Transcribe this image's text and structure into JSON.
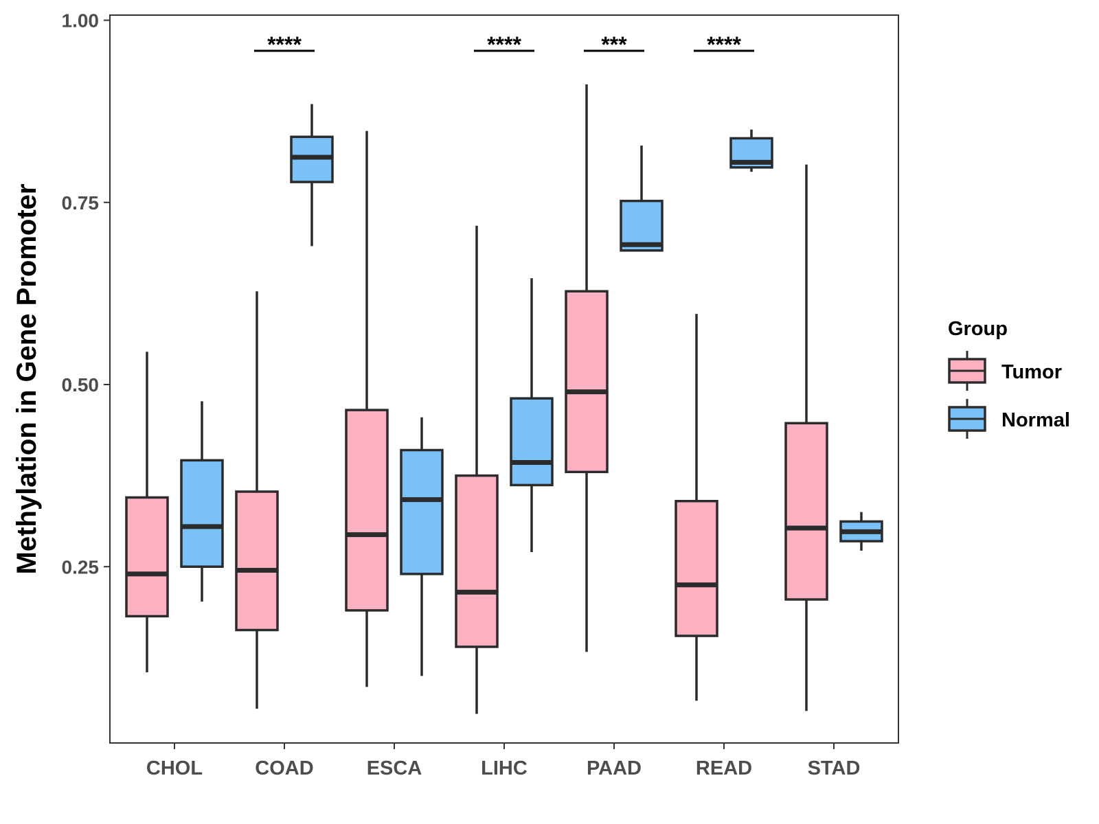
{
  "chart_data": {
    "type": "boxplot",
    "title": "",
    "xlabel": "",
    "ylabel": "Methylation in Gene Promoter",
    "ylim": [
      0.0,
      1.0
    ],
    "yticks": [
      0.25,
      0.5,
      0.75,
      1.0
    ],
    "ytick_labels": [
      "0.25",
      "0.50",
      "0.75",
      "1.00"
    ],
    "categories": [
      "CHOL",
      "COAD",
      "ESCA",
      "LIHC",
      "PAAD",
      "READ",
      "STAD"
    ],
    "grid": false,
    "legend": {
      "title": "Group",
      "position": "right",
      "entries": [
        {
          "name": "Tumor",
          "color": "#FBB1C2"
        },
        {
          "name": "Normal",
          "color": "#7AC1F8"
        }
      ]
    },
    "series": [
      {
        "name": "Tumor",
        "color": "#FBB1C2",
        "boxes": [
          {
            "category": "CHOL",
            "min": 0.105,
            "q1": 0.182,
            "median": 0.24,
            "q3": 0.345,
            "max": 0.545
          },
          {
            "category": "COAD",
            "min": 0.055,
            "q1": 0.163,
            "median": 0.245,
            "q3": 0.353,
            "max": 0.628
          },
          {
            "category": "ESCA",
            "min": 0.085,
            "q1": 0.19,
            "median": 0.294,
            "q3": 0.465,
            "max": 0.848
          },
          {
            "category": "LIHC",
            "min": 0.048,
            "q1": 0.14,
            "median": 0.215,
            "q3": 0.375,
            "max": 0.718
          },
          {
            "category": "PAAD",
            "min": 0.133,
            "q1": 0.38,
            "median": 0.49,
            "q3": 0.628,
            "max": 0.912
          },
          {
            "category": "READ",
            "min": 0.066,
            "q1": 0.155,
            "median": 0.225,
            "q3": 0.34,
            "max": 0.597
          },
          {
            "category": "STAD",
            "min": 0.052,
            "q1": 0.205,
            "median": 0.303,
            "q3": 0.447,
            "max": 0.802
          }
        ]
      },
      {
        "name": "Normal",
        "color": "#7AC1F8",
        "boxes": [
          {
            "category": "CHOL",
            "min": 0.202,
            "q1": 0.25,
            "median": 0.305,
            "q3": 0.396,
            "max": 0.477
          },
          {
            "category": "COAD",
            "min": 0.69,
            "q1": 0.778,
            "median": 0.812,
            "q3": 0.84,
            "max": 0.885
          },
          {
            "category": "ESCA",
            "min": 0.1,
            "q1": 0.24,
            "median": 0.342,
            "q3": 0.41,
            "max": 0.455
          },
          {
            "category": "LIHC",
            "min": 0.27,
            "q1": 0.362,
            "median": 0.393,
            "q3": 0.481,
            "max": 0.646
          },
          {
            "category": "PAAD",
            "min": 0.684,
            "q1": 0.684,
            "median": 0.692,
            "q3": 0.752,
            "max": 0.828
          },
          {
            "category": "READ",
            "min": 0.792,
            "q1": 0.798,
            "median": 0.805,
            "q3": 0.838,
            "max": 0.85
          },
          {
            "category": "STAD",
            "min": 0.272,
            "q1": 0.285,
            "median": 0.298,
            "q3": 0.312,
            "max": 0.325
          }
        ]
      }
    ],
    "annotations": [
      {
        "category": "COAD",
        "text": "****"
      },
      {
        "category": "LIHC",
        "text": "****"
      },
      {
        "category": "PAAD",
        "text": "***"
      },
      {
        "category": "READ",
        "text": "****"
      }
    ]
  }
}
